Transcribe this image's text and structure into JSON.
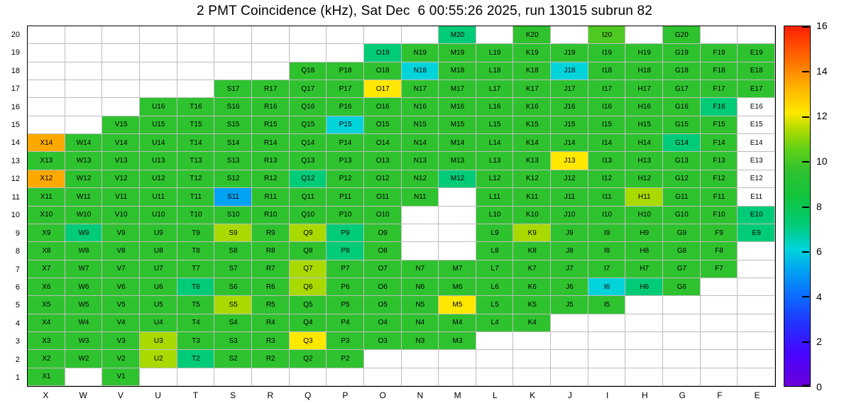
{
  "chart_data": {
    "type": "heatmap",
    "title": "2 PMT Coincidence (kHz), Sat Dec  6 00:55:26 2025, run 13015 subrun 82",
    "xlabel": "",
    "ylabel": "",
    "value_unit": "kHz",
    "columns": [
      "X",
      "W",
      "V",
      "U",
      "T",
      "S",
      "R",
      "Q",
      "P",
      "O",
      "N",
      "M",
      "L",
      "K",
      "J",
      "I",
      "H",
      "G",
      "F",
      "E"
    ],
    "rows": [
      20,
      19,
      18,
      17,
      16,
      15,
      14,
      13,
      12,
      11,
      10,
      9,
      8,
      7,
      6,
      5,
      4,
      3,
      2,
      1
    ],
    "grid": [
      [
        null,
        null,
        null,
        null,
        null,
        null,
        null,
        null,
        null,
        null,
        null,
        8,
        null,
        9,
        null,
        10,
        null,
        9,
        null,
        null
      ],
      [
        null,
        null,
        null,
        null,
        null,
        null,
        null,
        null,
        null,
        8,
        9,
        9,
        9,
        9,
        9,
        9,
        9,
        9,
        9,
        9
      ],
      [
        null,
        null,
        null,
        null,
        null,
        null,
        null,
        9,
        9,
        9,
        6,
        9,
        9,
        9,
        6,
        9,
        9,
        9,
        9,
        9
      ],
      [
        null,
        null,
        null,
        null,
        null,
        9,
        9,
        9,
        9,
        12,
        9,
        9,
        9,
        9,
        9,
        9,
        9,
        9,
        9,
        9
      ],
      [
        null,
        null,
        null,
        9,
        9,
        9,
        9,
        9,
        9,
        9,
        9,
        9,
        9,
        9,
        9,
        9,
        9,
        9,
        8,
        0
      ],
      [
        null,
        null,
        9,
        9,
        9,
        9,
        9,
        9,
        6,
        9,
        9,
        9,
        9,
        9,
        9,
        9,
        9,
        9,
        9,
        0
      ],
      [
        13,
        9,
        9,
        9,
        9,
        9,
        9,
        9,
        9,
        9,
        9,
        9,
        9,
        9,
        9,
        9,
        9,
        8,
        9,
        0
      ],
      [
        9,
        9,
        9,
        9,
        9,
        9,
        9,
        9,
        9,
        9,
        9,
        9,
        9,
        9,
        12,
        9,
        9,
        9,
        9,
        0
      ],
      [
        13,
        9,
        9,
        9,
        9,
        9,
        9,
        8,
        9,
        9,
        9,
        8,
        9,
        9,
        9,
        9,
        9,
        9,
        9,
        0
      ],
      [
        9,
        9,
        9,
        9,
        9,
        5,
        9,
        9,
        9,
        9,
        9,
        null,
        9,
        9,
        9,
        9,
        11,
        9,
        9,
        0
      ],
      [
        9,
        9,
        9,
        9,
        9,
        9,
        9,
        9,
        9,
        9,
        null,
        null,
        9,
        9,
        9,
        9,
        9,
        9,
        9,
        8
      ],
      [
        9,
        8,
        9,
        9,
        9,
        11,
        9,
        11,
        8,
        9,
        null,
        null,
        9,
        11,
        9,
        9,
        9,
        9,
        9,
        8
      ],
      [
        9,
        9,
        9,
        9,
        9,
        9,
        9,
        9,
        8,
        9,
        null,
        null,
        9,
        9,
        9,
        9,
        9,
        9,
        9,
        null
      ],
      [
        9,
        9,
        9,
        9,
        9,
        9,
        9,
        11,
        9,
        9,
        9,
        9,
        9,
        9,
        9,
        9,
        9,
        9,
        9,
        null
      ],
      [
        9,
        9,
        9,
        9,
        8,
        9,
        9,
        11,
        9,
        9,
        9,
        9,
        9,
        9,
        9,
        6,
        8,
        9,
        null,
        null
      ],
      [
        9,
        9,
        9,
        9,
        9,
        11,
        9,
        9,
        9,
        9,
        9,
        12,
        9,
        9,
        9,
        9,
        null,
        null,
        null,
        null
      ],
      [
        9,
        9,
        9,
        9,
        9,
        9,
        9,
        9,
        9,
        9,
        9,
        9,
        9,
        9,
        null,
        null,
        null,
        null,
        null,
        null
      ],
      [
        9,
        9,
        9,
        11,
        9,
        9,
        9,
        12,
        9,
        9,
        9,
        9,
        null,
        null,
        null,
        null,
        null,
        null,
        null,
        null
      ],
      [
        9,
        9,
        9,
        11,
        8,
        9,
        9,
        9,
        9,
        null,
        null,
        null,
        null,
        null,
        null,
        null,
        null,
        null,
        null,
        null
      ],
      [
        9,
        null,
        9,
        null,
        null,
        null,
        null,
        null,
        null,
        null,
        null,
        null,
        null,
        null,
        null,
        null,
        null,
        null,
        null,
        null
      ]
    ],
    "value_colors": {
      "0": "#ffffff",
      "5": "#00a2f3",
      "6": "#00d4da",
      "8": "#00cb77",
      "9": "#2fc22f",
      "10": "#4ec922",
      "11": "#a9da00",
      "12": "#ffe800",
      "13": "#ffa900"
    },
    "colorbar": {
      "min": 0,
      "max": 16,
      "ticks": [
        16,
        14,
        12,
        10,
        8,
        6,
        4,
        2,
        0
      ],
      "gradient": [
        {
          "pos": 0.0,
          "color": "#6a00d8"
        },
        {
          "pos": 0.09,
          "color": "#4804ff"
        },
        {
          "pos": 0.17,
          "color": "#2330ff"
        },
        {
          "pos": 0.25,
          "color": "#0b6bff"
        },
        {
          "pos": 0.33,
          "color": "#00aaf0"
        },
        {
          "pos": 0.38,
          "color": "#00d4da"
        },
        {
          "pos": 0.45,
          "color": "#00cb77"
        },
        {
          "pos": 0.53,
          "color": "#12c43a"
        },
        {
          "pos": 0.6,
          "color": "#2fc22f"
        },
        {
          "pos": 0.66,
          "color": "#63d116"
        },
        {
          "pos": 0.71,
          "color": "#a9da00"
        },
        {
          "pos": 0.76,
          "color": "#ffe800"
        },
        {
          "pos": 0.83,
          "color": "#ffb300"
        },
        {
          "pos": 0.9,
          "color": "#ff7300"
        },
        {
          "pos": 1.0,
          "color": "#ff1e00"
        }
      ]
    }
  }
}
